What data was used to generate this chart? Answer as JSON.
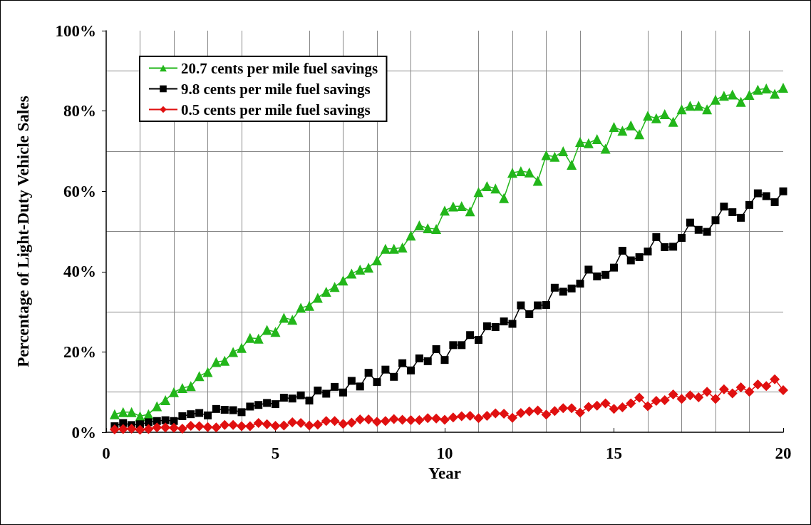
{
  "chart_data": {
    "type": "line",
    "xlabel": "Year",
    "ylabel": "Percentage of Light-Duty Vehicle Sales",
    "x": [
      0.25,
      0.5,
      0.75,
      1,
      1.25,
      1.5,
      1.75,
      2,
      2.25,
      2.5,
      2.75,
      3,
      3.25,
      3.5,
      3.75,
      4,
      4.25,
      4.5,
      4.75,
      5,
      5.25,
      5.5,
      5.75,
      6,
      6.25,
      6.5,
      6.75,
      7,
      7.25,
      7.5,
      7.75,
      8,
      8.25,
      8.5,
      8.75,
      9,
      9.25,
      9.5,
      9.75,
      10,
      10.25,
      10.5,
      10.75,
      11,
      11.25,
      11.5,
      11.75,
      12,
      12.25,
      12.5,
      12.75,
      13,
      13.25,
      13.5,
      13.75,
      14,
      14.25,
      14.5,
      14.75,
      15,
      15.25,
      15.5,
      15.75,
      16,
      16.25,
      16.5,
      16.75,
      17,
      17.25,
      17.5,
      17.75,
      18,
      18.25,
      18.5,
      18.75,
      19,
      19.25,
      19.5,
      19.75,
      20
    ],
    "series": [
      {
        "name": "20.7 cents per mile fuel savings",
        "color": "#22b61a",
        "marker": "triangle",
        "values": [
          4.5,
          5,
          5,
          4,
          4.5,
          6.5,
          8,
          10,
          11,
          11.5,
          14,
          15,
          17.5,
          17.8,
          20,
          21,
          23.5,
          23.3,
          25.5,
          25,
          28.5,
          28,
          31,
          31.5,
          33.5,
          35,
          36.2,
          37.8,
          39.5,
          40.5,
          41,
          42.8,
          45.7,
          45.7,
          46,
          49,
          51.5,
          50.8,
          50.6,
          55.2,
          56.2,
          56.3,
          55,
          59.8,
          61.3,
          60.7,
          58.3,
          64.6,
          65,
          64.7,
          62.6,
          69,
          68.6,
          70,
          66.6,
          72.3,
          72,
          73,
          70.6,
          76,
          75.1,
          76.4,
          74.2,
          78.8,
          78.2,
          79.2,
          77.3,
          80.4,
          81.3,
          81.3,
          80.4,
          82.8,
          83.8,
          84.1,
          82.3,
          84,
          85.3,
          85.6,
          84.3,
          85.8
        ]
      },
      {
        "name": "9.8 cents per mile fuel savings",
        "color": "#000000",
        "marker": "square",
        "values": [
          1.5,
          2.3,
          1.8,
          2,
          2.5,
          2.8,
          3,
          2.8,
          4,
          4.5,
          4.8,
          4.2,
          5.8,
          5.6,
          5.5,
          5,
          6.4,
          6.8,
          7.3,
          7,
          8.6,
          8.4,
          9.2,
          7.9,
          10.4,
          9.6,
          11.3,
          9.9,
          12.8,
          11.4,
          14.8,
          12.5,
          15.6,
          13.8,
          17.2,
          15.4,
          18.4,
          17.7,
          20.7,
          18,
          21.7,
          21.7,
          24.2,
          23,
          26.4,
          26.2,
          27.6,
          27,
          31.6,
          29.4,
          31.6,
          31.7,
          36,
          35,
          35.8,
          37,
          40.5,
          38.8,
          39.2,
          41,
          45.2,
          42.8,
          43.6,
          45,
          48.6,
          46.1,
          46.2,
          48.4,
          52.2,
          50.4,
          49.9,
          52.8,
          56.2,
          54.8,
          53.4,
          56.6,
          59.5,
          58.8,
          57.3,
          60
        ]
      },
      {
        "name": "0.5 cents per mile fuel savings",
        "color": "#e01010",
        "marker": "diamond",
        "values": [
          0.7,
          0.8,
          0.9,
          0.6,
          0.8,
          1.2,
          1.2,
          1.1,
          0.9,
          1.6,
          1.5,
          1.3,
          1.2,
          1.8,
          1.8,
          1.5,
          1.5,
          2.3,
          2,
          1.6,
          1.7,
          2.5,
          2.3,
          1.7,
          1.9,
          2.8,
          2.8,
          2.1,
          2.4,
          3.2,
          3.2,
          2.6,
          2.8,
          3.3,
          3.1,
          3,
          3,
          3.5,
          3.4,
          3.1,
          3.7,
          4,
          4.1,
          3.5,
          4.1,
          4.7,
          4.6,
          3.6,
          4.8,
          5.2,
          5.4,
          4.4,
          5.3,
          6,
          6,
          4.9,
          6.3,
          6.6,
          7.2,
          5.8,
          6.2,
          7.2,
          8.6,
          6.5,
          7.8,
          8,
          9.4,
          8.3,
          9.2,
          8.7,
          10.1,
          8.3,
          10.7,
          9.7,
          11.2,
          10.1,
          11.9,
          11.5,
          13.2,
          10.5
        ]
      }
    ],
    "xlim": [
      0,
      20
    ],
    "xticks": [
      0,
      5,
      10,
      15,
      20
    ],
    "ylim": [
      0,
      100
    ],
    "yticks": [
      {
        "value": 0,
        "label": "0%"
      },
      {
        "value": 20,
        "label": "20%"
      },
      {
        "value": 40,
        "label": "40%"
      },
      {
        "value": 60,
        "label": "60%"
      },
      {
        "value": 80,
        "label": "80%"
      },
      {
        "value": 100,
        "label": "100%"
      }
    ],
    "grid": true,
    "legend": "top left",
    "line_style": "solid"
  }
}
